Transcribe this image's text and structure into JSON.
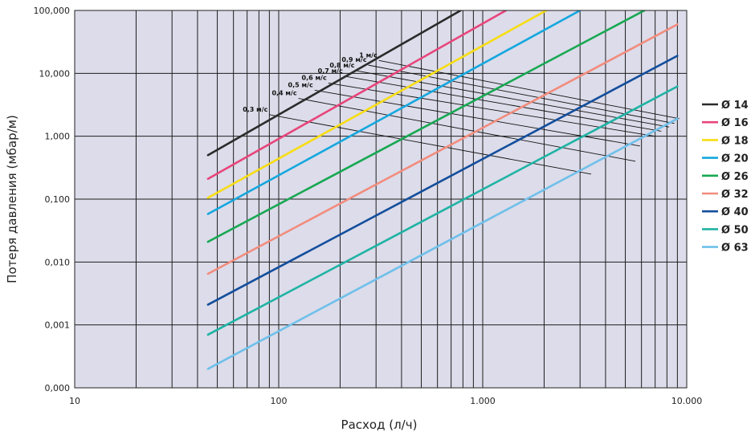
{
  "chart_data": {
    "type": "line",
    "title": "",
    "xlabel": "Расход (л/ч)",
    "ylabel": "Потеря давления (мбар/м)",
    "xscale": "log",
    "yscale": "log",
    "xlim": [
      10,
      10000
    ],
    "ylim": [
      0.0001,
      100
    ],
    "grid": true,
    "legend_position": "right",
    "x_ticks": [
      {
        "value": 10,
        "label": "10"
      },
      {
        "value": 100,
        "label": "100"
      },
      {
        "value": 1000,
        "label": "1.000"
      },
      {
        "value": 10000,
        "label": "10.000"
      }
    ],
    "y_ticks": [
      {
        "value": 0.0001,
        "label": "0,000"
      },
      {
        "value": 0.001,
        "label": "0,001"
      },
      {
        "value": 0.01,
        "label": "0,010"
      },
      {
        "value": 0.1,
        "label": "0,100"
      },
      {
        "value": 1,
        "label": "1,000"
      },
      {
        "value": 10,
        "label": "10,000"
      },
      {
        "value": 100,
        "label": "100,000"
      }
    ],
    "series": [
      {
        "name": "Ø 14",
        "color": "#2b2b2b",
        "x": [
          45,
          780
        ],
        "y": [
          0.5,
          100
        ]
      },
      {
        "name": "Ø 16",
        "color": "#e8457a",
        "x": [
          45,
          1300
        ],
        "y": [
          0.21,
          100
        ]
      },
      {
        "name": "Ø 18",
        "color": "#f7dd12",
        "x": [
          45,
          2050
        ],
        "y": [
          0.105,
          100
        ]
      },
      {
        "name": "Ø 20",
        "color": "#14a7de",
        "x": [
          45,
          3000
        ],
        "y": [
          0.058,
          100
        ]
      },
      {
        "name": "Ø 26",
        "color": "#17a852",
        "x": [
          45,
          6200
        ],
        "y": [
          0.021,
          100
        ]
      },
      {
        "name": "Ø 32",
        "color": "#f28c7d",
        "x": [
          45,
          9000
        ],
        "y": [
          0.0065,
          60
        ]
      },
      {
        "name": "Ø 40",
        "color": "#134e9c",
        "x": [
          45,
          9000
        ],
        "y": [
          0.0021,
          19
        ]
      },
      {
        "name": "Ø 50",
        "color": "#1fb3a4",
        "x": [
          45,
          9000
        ],
        "y": [
          0.0007,
          6.2
        ]
      },
      {
        "name": "Ø 63",
        "color": "#6fc0ea",
        "x": [
          45,
          9000
        ],
        "y": [
          0.0002,
          1.9
        ]
      }
    ],
    "velocity_lines": [
      {
        "label": "0,3 м/с",
        "x": [
          90,
          3400
        ],
        "y": [
          2.2,
          0.25
        ]
      },
      {
        "label": "0,4 м/с",
        "x": [
          125,
          5600
        ],
        "y": [
          4.0,
          0.4
        ]
      },
      {
        "label": "0,5 м/с",
        "x": [
          150,
          5900
        ],
        "y": [
          5.4,
          0.7
        ]
      },
      {
        "label": "0,6 м/с",
        "x": [
          175,
          7000
        ],
        "y": [
          7.0,
          1.0
        ]
      },
      {
        "label": "0,7 м/с",
        "x": [
          210,
          7500
        ],
        "y": [
          9.0,
          1.2
        ]
      },
      {
        "label": "0,8 м/с",
        "x": [
          240,
          8200
        ],
        "y": [
          11.0,
          1.4
        ]
      },
      {
        "label": "0,9 м/с",
        "x": [
          275,
          8700
        ],
        "y": [
          13.5,
          1.6
        ]
      },
      {
        "label": "1 м/с",
        "x": [
          310,
          9200
        ],
        "y": [
          16.0,
          1.9
        ]
      }
    ]
  }
}
